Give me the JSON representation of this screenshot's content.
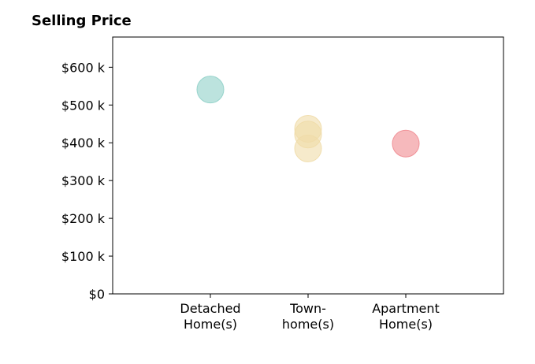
{
  "chart_data": {
    "type": "scatter",
    "title": "Selling Price",
    "xlabel": "",
    "ylabel": "",
    "categories": [
      [
        "Detached",
        "Home(s)"
      ],
      [
        "Town-",
        "home(s)"
      ],
      [
        "Apartment",
        "Home(s)"
      ]
    ],
    "yticks": [
      0,
      100,
      200,
      300,
      400,
      500,
      600
    ],
    "ytick_labels": [
      "$0",
      "$100 k",
      "$200 k",
      "$300 k",
      "$400 k",
      "$500 k",
      "$600 k"
    ],
    "ylim": [
      0,
      680
    ],
    "xlim": [
      -1,
      3
    ],
    "grid": false,
    "points": [
      {
        "category": 0,
        "value": 541,
        "color": "#8fd0c8"
      },
      {
        "category": 1,
        "value": 437,
        "color": "#f0dca8"
      },
      {
        "category": 1,
        "value": 422,
        "color": "#f0dca8"
      },
      {
        "category": 1,
        "value": 385,
        "color": "#f0dca8"
      },
      {
        "category": 2,
        "value": 398,
        "color": "#f08a90"
      }
    ]
  }
}
